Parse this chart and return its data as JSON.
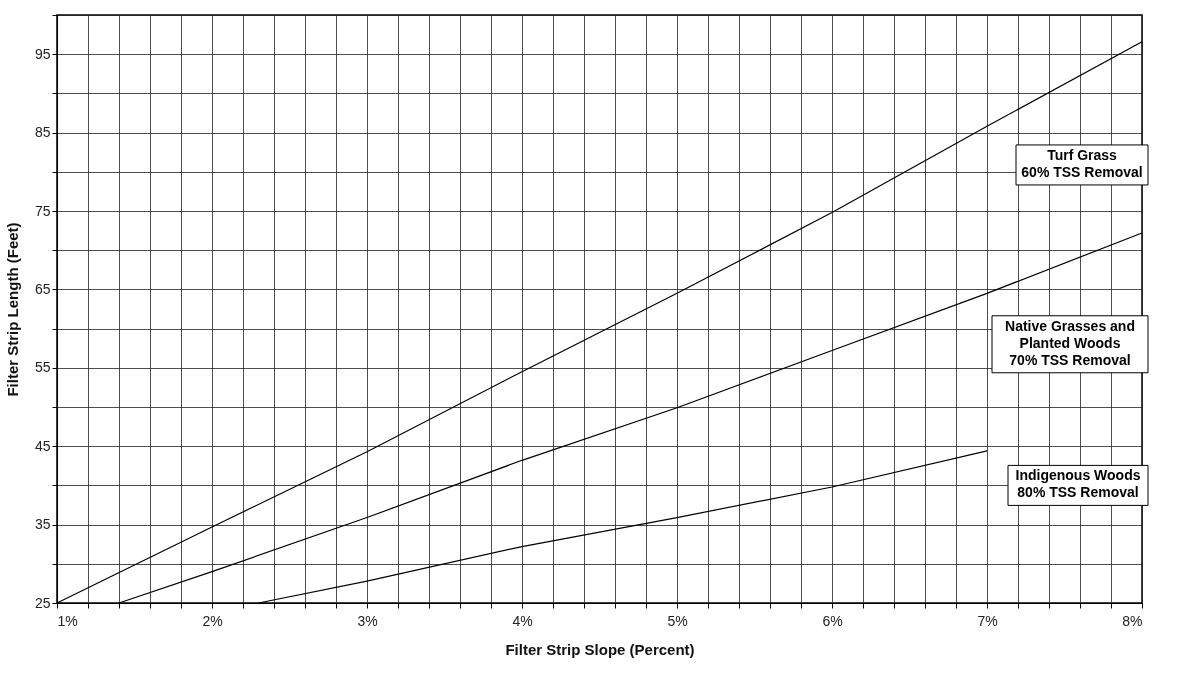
{
  "chart_data": {
    "type": "line",
    "xlabel": "Filter Strip Slope (Percent)",
    "ylabel": "Filter Strip Length (Feet)",
    "series": [
      {
        "color": "#000000",
        "x": [
          1,
          2,
          3,
          4,
          5,
          6,
          7,
          8
        ],
        "values": [
          25,
          34.7,
          44.3,
          54.5,
          64.5,
          74.8,
          85.8,
          96.6
        ]
      },
      {
        "color": "#000000",
        "x": [
          1.4,
          2,
          3,
          4,
          5,
          6,
          7,
          8
        ],
        "values": [
          25,
          29,
          35.9,
          43.2,
          49.9,
          57.2,
          64.5,
          72.2
        ]
      },
      {
        "color": "#000000",
        "x": [
          2.3,
          3,
          4,
          5,
          6,
          7
        ],
        "values": [
          25,
          27.8,
          32.2,
          35.9,
          39.8,
          44.4
        ]
      }
    ],
    "annotations": [
      "Turf Grass\n60% TSS Removal",
      "Native Grasses and\nPlanted Woods\n70% TSS Removal",
      "Indigenous Woods\n80% TSS Removal"
    ],
    "xlim": [
      1,
      8
    ],
    "ylim": [
      25,
      100
    ],
    "xticks": [
      {
        "value": 1,
        "label": "1%"
      },
      {
        "value": 1.2,
        "label": null
      },
      {
        "value": 1.4,
        "label": null
      },
      {
        "value": 1.6,
        "label": null
      },
      {
        "value": 1.8,
        "label": null
      },
      {
        "value": 2,
        "label": "2%"
      },
      {
        "value": 2.2,
        "label": null
      },
      {
        "value": 2.4,
        "label": null
      },
      {
        "value": 2.6,
        "label": null
      },
      {
        "value": 2.8,
        "label": null
      },
      {
        "value": 3,
        "label": "3%"
      },
      {
        "value": 3.2,
        "label": null
      },
      {
        "value": 3.4,
        "label": null
      },
      {
        "value": 3.6,
        "label": null
      },
      {
        "value": 3.8,
        "label": null
      },
      {
        "value": 4,
        "label": "4%"
      },
      {
        "value": 4.2,
        "label": null
      },
      {
        "value": 4.4,
        "label": null
      },
      {
        "value": 4.6,
        "label": null
      },
      {
        "value": 4.8,
        "label": null
      },
      {
        "value": 5,
        "label": "5%"
      },
      {
        "value": 5.2,
        "label": null
      },
      {
        "value": 5.4,
        "label": null
      },
      {
        "value": 5.6,
        "label": null
      },
      {
        "value": 5.8,
        "label": null
      },
      {
        "value": 6,
        "label": "6%"
      },
      {
        "value": 6.2,
        "label": null
      },
      {
        "value": 6.4,
        "label": null
      },
      {
        "value": 6.6,
        "label": null
      },
      {
        "value": 6.8,
        "label": null
      },
      {
        "value": 7,
        "label": "7%"
      },
      {
        "value": 7.2,
        "label": null
      },
      {
        "value": 7.4,
        "label": null
      },
      {
        "value": 7.6,
        "label": null
      },
      {
        "value": 7.8,
        "label": null
      },
      {
        "value": 8,
        "label": "8%"
      }
    ],
    "yticks": [
      25,
      {
        "value": 30,
        "label": null
      },
      35,
      {
        "value": 40,
        "label": null
      },
      45,
      {
        "value": 50,
        "label": null
      },
      55,
      {
        "value": 60,
        "label": null
      },
      65,
      {
        "value": 70,
        "label": null
      },
      75,
      {
        "value": 80,
        "label": null
      },
      85,
      {
        "value": 90,
        "label": null
      },
      95,
      {
        "value": 100,
        "label": null
      }
    ],
    "grid": true,
    "marker": "none",
    "line_style": "solid",
    "legend": false
  }
}
